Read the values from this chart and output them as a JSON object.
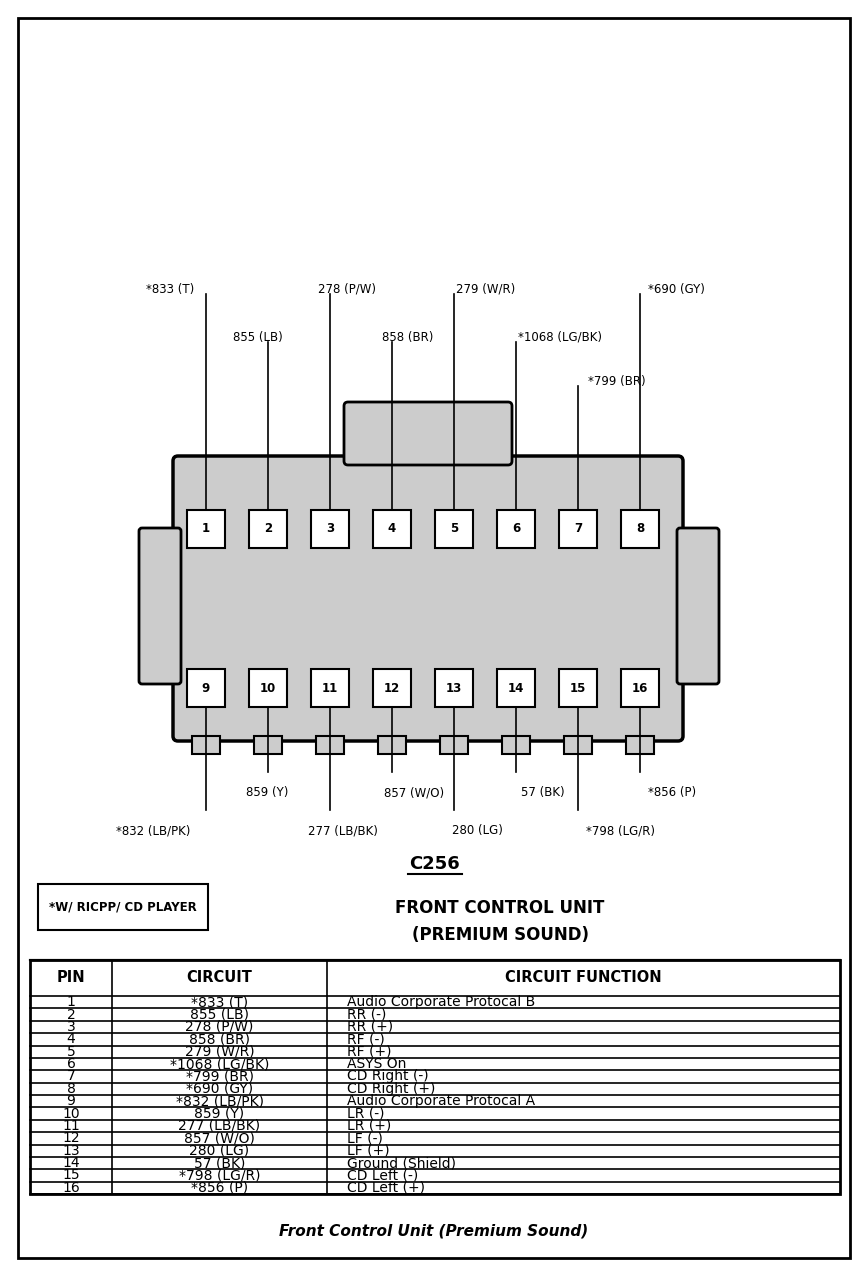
{
  "title_connector": "C256",
  "title_unit": "FRONT CONTROL UNIT",
  "title_sound": "(PREMIUM SOUND)",
  "asterisk_note": "*W/ RICPP/ CD PLAYER",
  "footer": "Front Control Unit (Premium Sound)",
  "table_headers": [
    "PIN",
    "CIRCUIT",
    "CIRCUIT FUNCTION"
  ],
  "table_data": [
    [
      "1",
      "*833 (T)",
      "Audio Corporate Protocal B"
    ],
    [
      "2",
      "855 (LB)",
      "RR (-)"
    ],
    [
      "3",
      "278 (P/W)",
      "RR (+)"
    ],
    [
      "4",
      "858 (BR)",
      "RF (-)"
    ],
    [
      "5",
      "279 (W/R)",
      "RF (+)"
    ],
    [
      "6",
      "*1068 (LG/BK)",
      "ASYS On"
    ],
    [
      "7",
      "*799 (BR)",
      "CD Right (-)"
    ],
    [
      "8",
      "*690 (GY)",
      "CD Right (+)"
    ],
    [
      "9",
      "*832 (LB/PK)",
      "Audio Corporate Protocal A"
    ],
    [
      "10",
      "859 (Y)",
      "LR (-)"
    ],
    [
      "11",
      "277 (LB/BK)",
      "LR (+)"
    ],
    [
      "12",
      "857 (W/O)",
      "LF (-)"
    ],
    [
      "13",
      "280 (LG)",
      "LF (+)"
    ],
    [
      "14",
      "57 (BK)",
      "Ground (Shield)"
    ],
    [
      "15",
      "*798 (LG/R)",
      "CD Left (-)"
    ],
    [
      "16",
      "*856 (P)",
      "CD Left (+)"
    ]
  ],
  "bg_color": "#ffffff",
  "connector_fill": "#cccccc",
  "connector_edge": "#000000",
  "pin_box_fill": "#ffffff"
}
